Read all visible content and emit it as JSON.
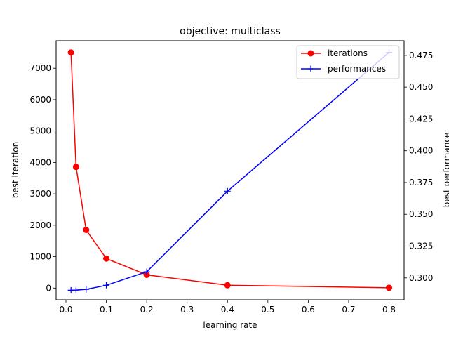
{
  "chart_data": {
    "type": "line",
    "title": "objective: multiclass",
    "xlabel": "learning rate",
    "ylabel": "best iteration",
    "y2label": "best performance",
    "xlim": [
      -0.0243,
      0.8373
    ],
    "ylim": [
      -373.65,
      7876.65
    ],
    "y2lim": [
      0.28277,
      0.48653
    ],
    "xticks": [
      0.0,
      0.1,
      0.2,
      0.3,
      0.4,
      0.5,
      0.6,
      0.7,
      0.8
    ],
    "xtick_labels": [
      "0.0",
      "0.1",
      "0.2",
      "0.3",
      "0.4",
      "0.5",
      "0.6",
      "0.7",
      "0.8"
    ],
    "yticks": [
      0,
      1000,
      2000,
      3000,
      4000,
      5000,
      6000,
      7000
    ],
    "ytick_labels": [
      "0",
      "1000",
      "2000",
      "3000",
      "4000",
      "5000",
      "6000",
      "7000"
    ],
    "y2ticks": [
      0.3,
      0.325,
      0.35,
      0.375,
      0.4,
      0.425,
      0.45,
      0.475
    ],
    "y2tick_labels": [
      "0.300",
      "0.325",
      "0.350",
      "0.375",
      "0.400",
      "0.425",
      "0.450",
      "0.475"
    ],
    "grid": false,
    "legend_position": "top-right",
    "series": [
      {
        "name": "iterations",
        "axis": "left",
        "color": "#ff0000",
        "marker": "circle",
        "x": [
          0.0125,
          0.025,
          0.05,
          0.1,
          0.2,
          0.4,
          0.8
        ],
        "values": [
          7503,
          3860,
          1850,
          940,
          420,
          90,
          10
        ]
      },
      {
        "name": "performances",
        "axis": "right",
        "color": "#0000ff",
        "marker": "plus",
        "x": [
          0.0125,
          0.025,
          0.05,
          0.1,
          0.2,
          0.4,
          0.8
        ],
        "values": [
          0.2903,
          0.2904,
          0.291,
          0.2942,
          0.3048,
          0.3682,
          0.4773
        ]
      }
    ]
  }
}
